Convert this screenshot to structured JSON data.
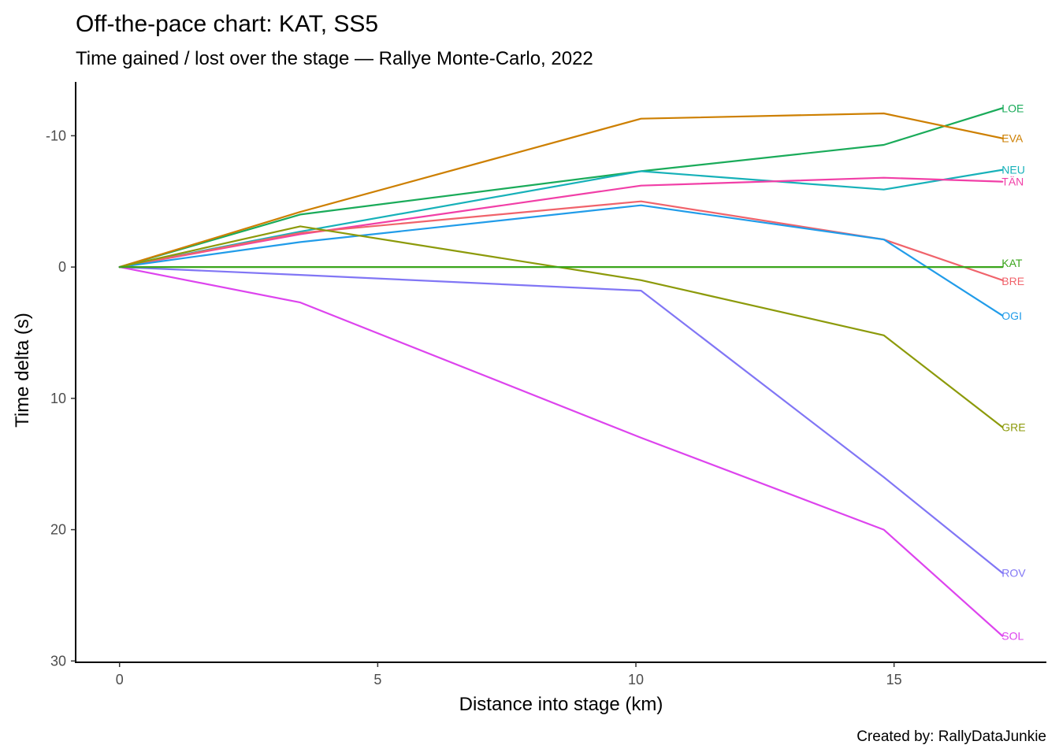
{
  "title": "Off-the-pace chart: KAT, SS5",
  "subtitle": "Time gained / lost over the stage — Rallye Monte-Carlo, 2022",
  "caption": "Created by: RallyDataJunkie",
  "chart_data": {
    "type": "line",
    "title": "Off-the-pace chart: KAT, SS5",
    "subtitle": "Time gained / lost over the stage — Rallye Monte-Carlo, 2022",
    "xlabel": "Distance into stage (km)",
    "ylabel": "Time delta (s)",
    "xlim": [
      -0.85,
      17.95
    ],
    "ylim": [
      -14.1,
      30.1
    ],
    "y_reversed": true,
    "x_ticks": [
      0,
      5,
      10,
      15
    ],
    "y_ticks": [
      -10,
      0,
      10,
      20,
      30
    ],
    "x_tick_labels": [
      "0",
      "5",
      "10",
      "15"
    ],
    "y_tick_labels": [
      "-10",
      "0",
      "10",
      "20",
      "30"
    ],
    "grid": false,
    "legend": "none (direct labels at line ends)",
    "x": [
      0,
      3.5,
      10.1,
      14.8,
      17.1
    ],
    "series": [
      {
        "name": "LOE",
        "color": "#1aab5a",
        "values": [
          0,
          -4.0,
          -7.3,
          -9.3,
          -12.1
        ]
      },
      {
        "name": "EVA",
        "color": "#cd7f00",
        "values": [
          0,
          -4.2,
          -11.3,
          -11.7,
          -9.8
        ]
      },
      {
        "name": "NEU",
        "color": "#17b1b9",
        "values": [
          0,
          -2.7,
          -7.3,
          -5.9,
          -7.4
        ]
      },
      {
        "name": "TÄN",
        "color": "#f13fa7",
        "values": [
          0,
          -2.5,
          -6.2,
          -6.8,
          -6.5
        ]
      },
      {
        "name": "KAT",
        "color": "#3aa51b",
        "values": [
          0,
          0,
          0,
          0,
          0
        ]
      },
      {
        "name": "BRE",
        "color": "#f0636b",
        "values": [
          0,
          -2.6,
          -5.0,
          -2.1,
          1.0
        ]
      },
      {
        "name": "OGI",
        "color": "#219ce9",
        "values": [
          0,
          -1.9,
          -4.7,
          -2.1,
          3.7
        ]
      },
      {
        "name": "GRE",
        "color": "#8c9a0a",
        "values": [
          0,
          -3.1,
          1.0,
          5.2,
          12.2
        ]
      },
      {
        "name": "ROV",
        "color": "#8176f5",
        "values": [
          0,
          0.6,
          1.8,
          16.0,
          23.3
        ]
      },
      {
        "name": "SOL",
        "color": "#dd44ee",
        "values": [
          0,
          2.7,
          13.0,
          20.0,
          28.1
        ]
      }
    ]
  }
}
